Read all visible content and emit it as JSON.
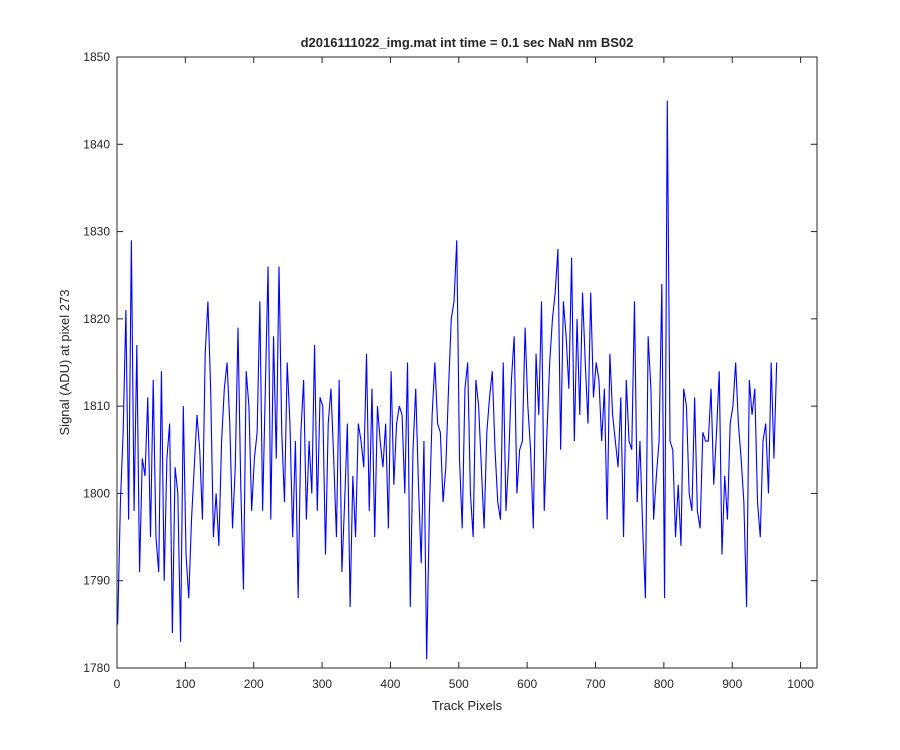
{
  "chart_data": {
    "type": "line",
    "title": "d2016111022_img.mat int time = 0.1 sec  NaN nm BS02",
    "xlabel": "Track Pixels",
    "ylabel": "Signal (ADU) at pixel 273",
    "xlim": [
      0,
      1024
    ],
    "ylim": [
      1780,
      1850
    ],
    "xticks": [
      0,
      100,
      200,
      300,
      400,
      500,
      600,
      700,
      800,
      900,
      1000
    ],
    "yticks": [
      1780,
      1790,
      1800,
      1810,
      1820,
      1830,
      1840,
      1850
    ],
    "grid": false,
    "line_color": "#0000ff",
    "series": [
      {
        "name": "",
        "sample_step": 4,
        "x_start": 1,
        "values": [
          1785,
          1799,
          1807,
          1821,
          1797,
          1829,
          1798,
          1817,
          1791,
          1804,
          1802,
          1811,
          1795,
          1813,
          1795,
          1791,
          1814,
          1790,
          1804,
          1808,
          1784,
          1803,
          1800,
          1783,
          1810,
          1793,
          1788,
          1797,
          1803,
          1809,
          1805,
          1797,
          1816,
          1822,
          1812,
          1795,
          1800,
          1794,
          1806,
          1812,
          1815,
          1808,
          1796,
          1803,
          1819,
          1801,
          1789,
          1814,
          1810,
          1798,
          1804,
          1807,
          1822,
          1798,
          1812,
          1826,
          1797,
          1818,
          1804,
          1826,
          1807,
          1799,
          1815,
          1808,
          1795,
          1806,
          1788,
          1807,
          1813,
          1797,
          1806,
          1800,
          1817,
          1798,
          1811,
          1810,
          1793,
          1808,
          1812,
          1804,
          1795,
          1813,
          1791,
          1799,
          1808,
          1787,
          1802,
          1795,
          1808,
          1806,
          1803,
          1816,
          1798,
          1812,
          1795,
          1810,
          1806,
          1803,
          1808,
          1796,
          1814,
          1801,
          1808,
          1810,
          1809,
          1800,
          1815,
          1787,
          1805,
          1812,
          1801,
          1792,
          1806,
          1781,
          1798,
          1809,
          1815,
          1808,
          1807,
          1799,
          1803,
          1812,
          1820,
          1822,
          1829,
          1804,
          1796,
          1812,
          1815,
          1800,
          1795,
          1813,
          1810,
          1803,
          1796,
          1807,
          1811,
          1814,
          1805,
          1799,
          1797,
          1815,
          1798,
          1804,
          1813,
          1818,
          1800,
          1805,
          1806,
          1819,
          1810,
          1805,
          1796,
          1816,
          1809,
          1822,
          1798,
          1807,
          1815,
          1820,
          1823,
          1828,
          1805,
          1822,
          1818,
          1812,
          1827,
          1806,
          1820,
          1809,
          1823,
          1815,
          1808,
          1823,
          1811,
          1815,
          1813,
          1806,
          1812,
          1797,
          1816,
          1809,
          1806,
          1803,
          1811,
          1795,
          1813,
          1806,
          1805,
          1822,
          1799,
          1806,
          1796,
          1788,
          1818,
          1812,
          1797,
          1802,
          1806,
          1824,
          1788,
          1845,
          1806,
          1805,
          1795,
          1801,
          1794,
          1812,
          1810,
          1800,
          1798,
          1811,
          1798,
          1796,
          1807,
          1806,
          1806,
          1812,
          1801,
          1807,
          1814,
          1793,
          1802,
          1797,
          1808,
          1810,
          1815,
          1808,
          1804,
          1799,
          1787,
          1813,
          1809,
          1812,
          1799,
          1795,
          1806,
          1808,
          1800,
          1815,
          1804,
          1815
        ]
      }
    ]
  }
}
